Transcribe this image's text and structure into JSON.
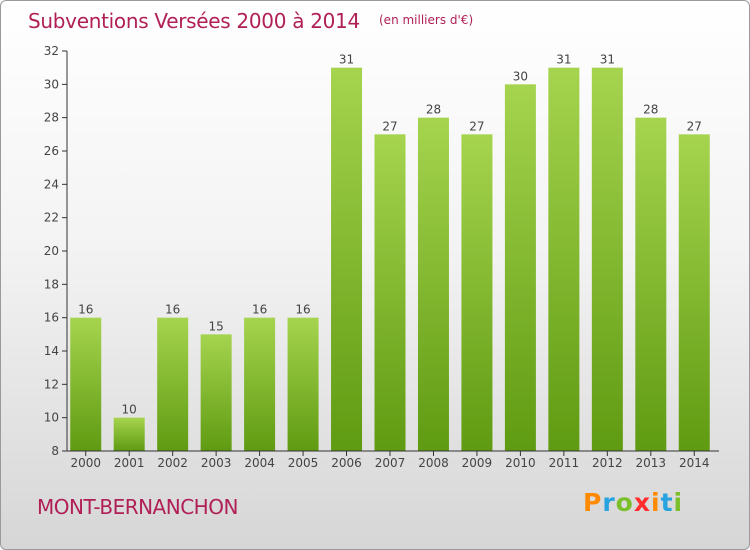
{
  "header": {
    "title": "Subventions Versées 2000 à 2014",
    "unit": "(en milliers d'€)"
  },
  "footer": {
    "commune": "MONT-BERNANCHON",
    "logo_text": "Proxiti",
    "logo_colors": [
      "#ff8a00",
      "#29a3e0",
      "#7bbf2a",
      "#ff2d2d",
      "#ff8a00",
      "#29a3e0",
      "#7bbf2a"
    ]
  },
  "colors": {
    "title": "#b01f56",
    "bar_light": "#a6d44f",
    "bar_dark": "#5f9b12",
    "axis": "#333333"
  },
  "chart_data": {
    "type": "bar",
    "title": "Subventions Versées 2000 à 2014",
    "subtitle": "(en milliers d'€)",
    "xlabel": "",
    "ylabel": "",
    "categories": [
      "2000",
      "2001",
      "2002",
      "2003",
      "2004",
      "2005",
      "2006",
      "2007",
      "2008",
      "2009",
      "2010",
      "2011",
      "2012",
      "2013",
      "2014"
    ],
    "values": [
      16,
      10,
      16,
      15,
      16,
      16,
      31,
      27,
      28,
      27,
      30,
      31,
      31,
      28,
      27
    ],
    "ylim": [
      8,
      32
    ],
    "yticks": [
      "8",
      "10",
      "12",
      "14",
      "16",
      "18",
      "20",
      "22",
      "24",
      "26",
      "28",
      "30",
      "32"
    ],
    "grid": false,
    "legend": "none"
  }
}
